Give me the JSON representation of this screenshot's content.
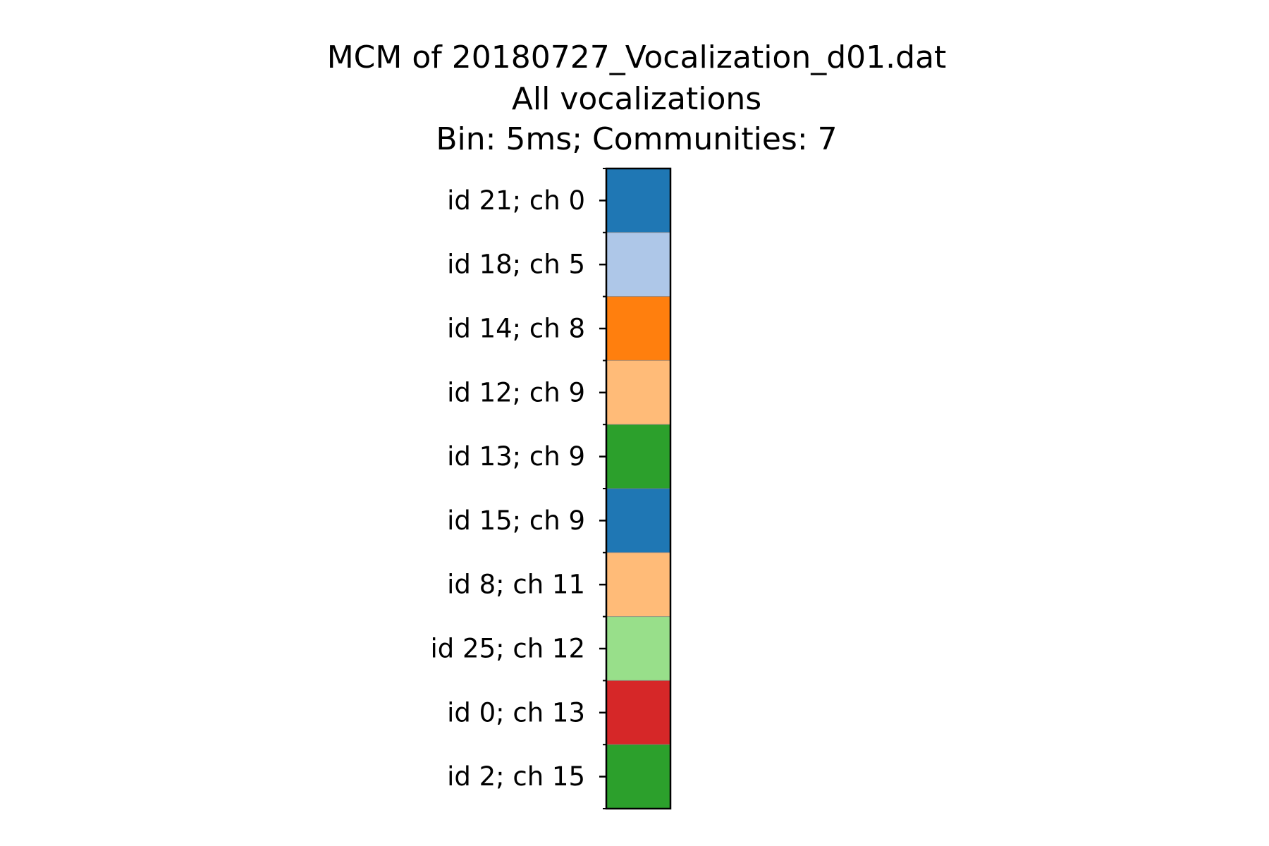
{
  "chart_data": {
    "type": "heatmap",
    "title": "MCM of 20180727_Vocalization_d01.dat",
    "subtitle_lines": [
      "All vocalizations",
      "Bin: 5ms; Communities: 7"
    ],
    "xlabel": "",
    "ylabel": "",
    "grid": false,
    "legend": "none",
    "rows": [
      {
        "label": "id 21; ch 0",
        "color": "#1f77b4"
      },
      {
        "label": "id 18; ch 5",
        "color": "#aec7e8"
      },
      {
        "label": "id 14; ch 8",
        "color": "#ff7f0e"
      },
      {
        "label": "id 12; ch 9",
        "color": "#ffbb78"
      },
      {
        "label": "id 13; ch 9",
        "color": "#2ca02c"
      },
      {
        "label": "id 15; ch 9",
        "color": "#1f77b4"
      },
      {
        "label": "id 8; ch 11",
        "color": "#ffbb78"
      },
      {
        "label": "id 25; ch 12",
        "color": "#98df8a"
      },
      {
        "label": "id 0; ch 13",
        "color": "#d62728"
      },
      {
        "label": "id 2; ch 15",
        "color": "#2ca02c"
      }
    ]
  }
}
